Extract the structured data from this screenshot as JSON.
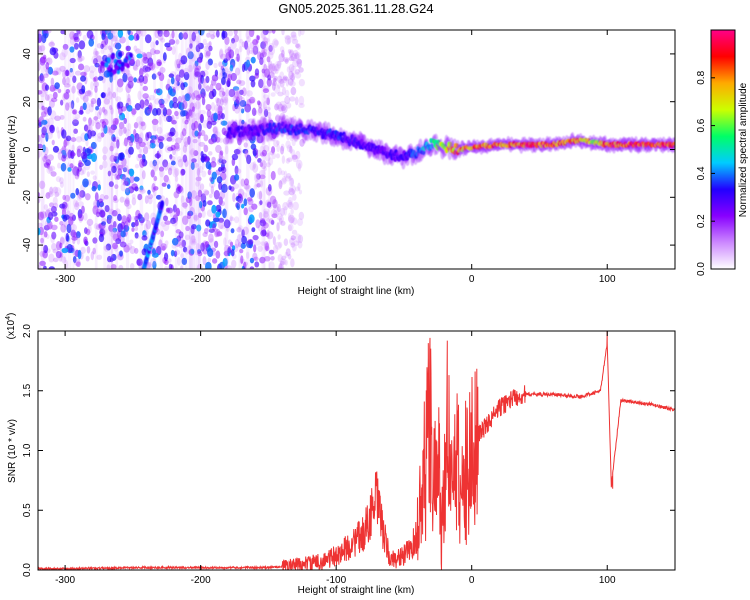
{
  "figure_title": "GN05.2025.361.11.28.G24",
  "chart_data": [
    {
      "type": "heatmap",
      "title": "GN05.2025.361.11.28.G24",
      "xlabel": "Height of straight line (km)",
      "ylabel": "Frequency (Hz)",
      "xlim": [
        -320,
        150
      ],
      "ylim": [
        -50,
        50
      ],
      "xticks": [
        -300,
        -200,
        -100,
        0,
        100
      ],
      "xtick_labels": [
        "-300",
        "-200",
        "-100",
        "0",
        "100"
      ],
      "yticks": [
        -40,
        -20,
        0,
        20,
        40
      ],
      "ytick_labels": [
        "-40",
        "-20",
        "0",
        "20",
        "40"
      ],
      "colorbar": {
        "label": "Normalized spectral amplitude",
        "range": [
          0,
          1
        ],
        "ticks": [
          0.0,
          0.2,
          0.4,
          0.6,
          0.8
        ],
        "tick_labels": [
          "0.0",
          "0.2",
          "0.4",
          "0.6",
          "0.8"
        ],
        "colors": [
          "#ffffff",
          "#cc88ff",
          "#8800ff",
          "#2200ff",
          "#00ccff",
          "#00ff66",
          "#ccff00",
          "#ffaa00",
          "#ff0000",
          "#ff0088"
        ]
      },
      "ridge": {
        "x": [
          -180,
          -160,
          -140,
          -120,
          -100,
          -80,
          -70,
          -60,
          -50,
          -40,
          -30,
          -20,
          -10,
          0,
          20,
          40,
          60,
          80,
          90,
          100,
          120,
          150
        ],
        "freq": [
          7,
          8,
          9,
          8,
          6,
          2,
          0,
          -2,
          -3,
          -1,
          2,
          1,
          0,
          1,
          2,
          2,
          2,
          4,
          3,
          2,
          2,
          2
        ],
        "amplitude": [
          0.3,
          0.3,
          0.35,
          0.35,
          0.35,
          0.3,
          0.3,
          0.3,
          0.3,
          0.4,
          0.5,
          0.7,
          0.8,
          0.85,
          0.85,
          0.9,
          0.9,
          0.8,
          0.7,
          0.9,
          0.9,
          0.9
        ]
      },
      "noise_region": [
        -320,
        -145
      ],
      "features": [
        {
          "name": "upper-blob",
          "x": -262,
          "freq": 36,
          "amplitude": 0.35
        },
        {
          "name": "descending-streak",
          "x": [
            -242,
            -228
          ],
          "freq": [
            -50,
            -22
          ],
          "amplitude": 0.4
        }
      ]
    },
    {
      "type": "line",
      "xlabel": "Height of straight line (km)",
      "ylabel": "SNR (10 * v/v)",
      "yscale_label": "(x10",
      "yscale_exponent": "4",
      "color": "#ee3333",
      "xlim": [
        -320,
        150
      ],
      "ylim": [
        0,
        2.0
      ],
      "xticks": [
        -300,
        -200,
        -100,
        0,
        100
      ],
      "xtick_labels": [
        "-300",
        "-200",
        "-100",
        "0",
        "100"
      ],
      "yticks": [
        0.0,
        0.5,
        1.0,
        1.5,
        2.0
      ],
      "ytick_labels": [
        "0.0",
        "0.5",
        "1.0",
        "1.5",
        "2.0"
      ],
      "series": [
        {
          "name": "SNR",
          "x": [
            -320,
            -300,
            -250,
            -200,
            -150,
            -130,
            -110,
            -100,
            -90,
            -80,
            -75,
            -70,
            -65,
            -60,
            -50,
            -45,
            -40,
            -37,
            -34,
            -31,
            -28,
            -25,
            -22,
            -18,
            -12,
            -5,
            0,
            10,
            20,
            30,
            40,
            60,
            80,
            95,
            100,
            103,
            110,
            130,
            150
          ],
          "y": [
            0.01,
            0.01,
            0.02,
            0.02,
            0.02,
            0.04,
            0.07,
            0.12,
            0.2,
            0.3,
            0.45,
            0.6,
            0.3,
            0.08,
            0.12,
            0.18,
            0.3,
            0.6,
            1.1,
            1.5,
            0.7,
            1.25,
            0.3,
            1.1,
            0.95,
            1.0,
            1.08,
            1.2,
            1.35,
            1.44,
            1.47,
            1.47,
            1.45,
            1.5,
            1.9,
            0.7,
            1.42,
            1.39,
            1.34
          ]
        }
      ],
      "spikes": [
        {
          "x": -32,
          "y": 1.78
        },
        {
          "x": -18,
          "y": 1.92
        },
        {
          "x": 100,
          "y": 2.0
        },
        {
          "x": 104,
          "y": 0.68
        }
      ]
    }
  ]
}
